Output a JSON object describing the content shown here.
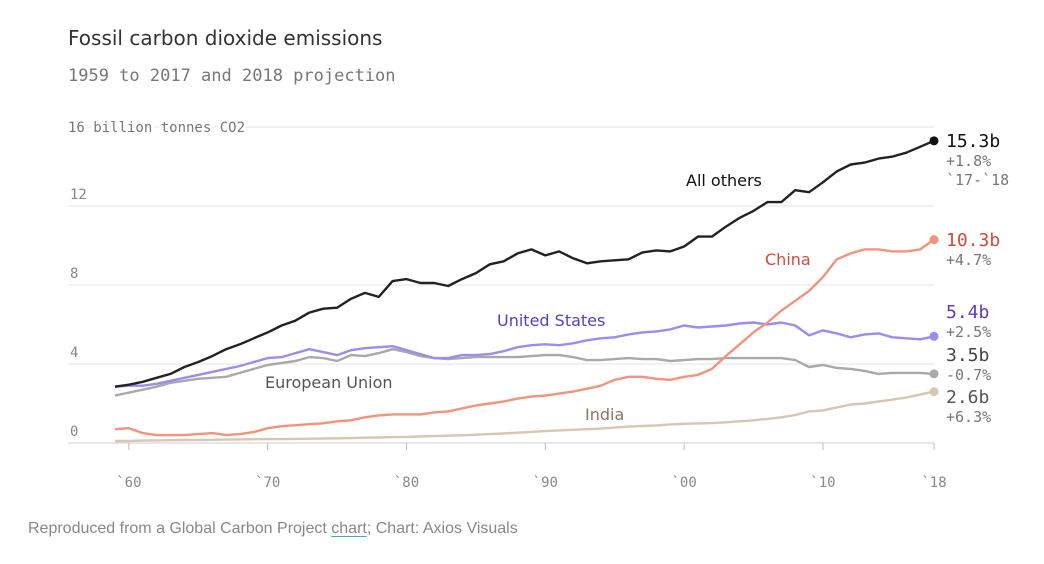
{
  "title": "Fossil carbon dioxide emissions",
  "subtitle": "1959 to 2017 and 2018 projection",
  "footer": {
    "prefix": "Reproduced from a Global Carbon Project ",
    "link": "chart",
    "suffix": "; Chart: Axios Visuals"
  },
  "chart_data": {
    "type": "line",
    "title": "Fossil carbon dioxide emissions",
    "subtitle": "1959 to 2017 and 2018 projection",
    "ylabel": "16 billion tonnes CO2",
    "xlim": [
      1959,
      2018
    ],
    "ylim": [
      0,
      16
    ],
    "yticks": [
      0,
      4,
      8,
      12,
      16
    ],
    "ytick_labels": [
      "0",
      "4",
      "8",
      "12",
      ""
    ],
    "xticks": [
      1960,
      1970,
      1980,
      1990,
      2000,
      2010,
      2018
    ],
    "xtick_labels": [
      "`60",
      "`70",
      "`80",
      "`90",
      "`00",
      "`10",
      "`18"
    ],
    "grid": true,
    "x": [
      1959,
      1960,
      1961,
      1962,
      1963,
      1964,
      1965,
      1966,
      1967,
      1968,
      1969,
      1970,
      1971,
      1972,
      1973,
      1974,
      1975,
      1976,
      1977,
      1978,
      1979,
      1980,
      1981,
      1982,
      1983,
      1984,
      1985,
      1986,
      1987,
      1988,
      1989,
      1990,
      1991,
      1992,
      1993,
      1994,
      1995,
      1996,
      1997,
      1998,
      1999,
      2000,
      2001,
      2002,
      2003,
      2004,
      2005,
      2006,
      2007,
      2008,
      2009,
      2010,
      2011,
      2012,
      2013,
      2014,
      2015,
      2016,
      2017,
      2018
    ],
    "series": [
      {
        "name": "All others",
        "color": "#222222",
        "label_color": "#111111",
        "end_value": "15.3b",
        "change": "+1.8%",
        "change_note": "`17-`18",
        "values": [
          2.85,
          2.95,
          3.1,
          3.3,
          3.5,
          3.85,
          4.1,
          4.4,
          4.75,
          5.0,
          5.3,
          5.6,
          5.95,
          6.2,
          6.6,
          6.8,
          6.85,
          7.3,
          7.6,
          7.4,
          8.2,
          8.3,
          8.1,
          8.1,
          7.95,
          8.3,
          8.6,
          9.05,
          9.2,
          9.6,
          9.8,
          9.5,
          9.7,
          9.35,
          9.1,
          9.2,
          9.25,
          9.3,
          9.65,
          9.75,
          9.7,
          9.95,
          10.45,
          10.45,
          10.95,
          11.4,
          11.75,
          12.2,
          12.2,
          12.8,
          12.7,
          13.2,
          13.75,
          14.1,
          14.2,
          14.4,
          14.5,
          14.7,
          15.0,
          15.3
        ]
      },
      {
        "name": "China",
        "color": "#f2937c",
        "label_color": "#d24a3a",
        "end_value": "10.3b",
        "change": "+4.7%",
        "values": [
          0.7,
          0.75,
          0.5,
          0.4,
          0.4,
          0.4,
          0.45,
          0.5,
          0.4,
          0.45,
          0.55,
          0.75,
          0.85,
          0.9,
          0.95,
          1.0,
          1.1,
          1.15,
          1.3,
          1.4,
          1.45,
          1.45,
          1.45,
          1.55,
          1.6,
          1.75,
          1.9,
          2.0,
          2.1,
          2.25,
          2.35,
          2.4,
          2.5,
          2.6,
          2.75,
          2.9,
          3.2,
          3.35,
          3.35,
          3.25,
          3.2,
          3.35,
          3.45,
          3.75,
          4.4,
          5.0,
          5.6,
          6.1,
          6.7,
          7.2,
          7.7,
          8.4,
          9.3,
          9.6,
          9.8,
          9.8,
          9.7,
          9.7,
          9.8,
          10.3
        ]
      },
      {
        "name": "United States",
        "color": "#9b8cf0",
        "label_color": "#5a3dbf",
        "end_value": "5.4b",
        "change": "+2.5%",
        "values": [
          2.85,
          2.9,
          2.9,
          3.0,
          3.15,
          3.3,
          3.45,
          3.6,
          3.75,
          3.9,
          4.1,
          4.3,
          4.35,
          4.55,
          4.75,
          4.6,
          4.45,
          4.7,
          4.8,
          4.85,
          4.9,
          4.7,
          4.5,
          4.3,
          4.3,
          4.45,
          4.45,
          4.5,
          4.65,
          4.85,
          4.95,
          5.0,
          4.95,
          5.05,
          5.2,
          5.3,
          5.35,
          5.5,
          5.6,
          5.65,
          5.75,
          5.95,
          5.85,
          5.9,
          5.95,
          6.05,
          6.1,
          6.0,
          6.1,
          5.95,
          5.45,
          5.7,
          5.55,
          5.35,
          5.5,
          5.55,
          5.35,
          5.3,
          5.25,
          5.4
        ]
      },
      {
        "name": "European Union",
        "color": "#a9a9a9",
        "label_color": "#555555",
        "end_value": "3.5b",
        "change": "-0.7%",
        "values": [
          2.4,
          2.55,
          2.7,
          2.85,
          3.05,
          3.15,
          3.25,
          3.3,
          3.35,
          3.55,
          3.75,
          3.95,
          4.05,
          4.15,
          4.35,
          4.3,
          4.15,
          4.45,
          4.4,
          4.55,
          4.75,
          4.6,
          4.4,
          4.3,
          4.25,
          4.3,
          4.35,
          4.35,
          4.35,
          4.35,
          4.4,
          4.45,
          4.45,
          4.35,
          4.2,
          4.2,
          4.25,
          4.3,
          4.25,
          4.25,
          4.15,
          4.2,
          4.25,
          4.25,
          4.3,
          4.3,
          4.3,
          4.3,
          4.3,
          4.2,
          3.85,
          3.95,
          3.8,
          3.75,
          3.65,
          3.5,
          3.55,
          3.55,
          3.55,
          3.5
        ]
      },
      {
        "name": "India",
        "color": "#d6c7b3",
        "label_color": "#8a7560",
        "end_value": "2.6b",
        "change": "+6.3%",
        "values": [
          0.1,
          0.1,
          0.12,
          0.13,
          0.14,
          0.15,
          0.15,
          0.16,
          0.17,
          0.18,
          0.19,
          0.2,
          0.2,
          0.21,
          0.22,
          0.23,
          0.24,
          0.25,
          0.27,
          0.28,
          0.3,
          0.31,
          0.33,
          0.35,
          0.37,
          0.39,
          0.42,
          0.45,
          0.48,
          0.52,
          0.56,
          0.6,
          0.64,
          0.67,
          0.7,
          0.73,
          0.78,
          0.83,
          0.86,
          0.89,
          0.94,
          0.97,
          0.99,
          1.01,
          1.05,
          1.1,
          1.15,
          1.22,
          1.3,
          1.42,
          1.6,
          1.65,
          1.8,
          1.95,
          2.0,
          2.1,
          2.2,
          2.3,
          2.45,
          2.6
        ]
      }
    ]
  }
}
